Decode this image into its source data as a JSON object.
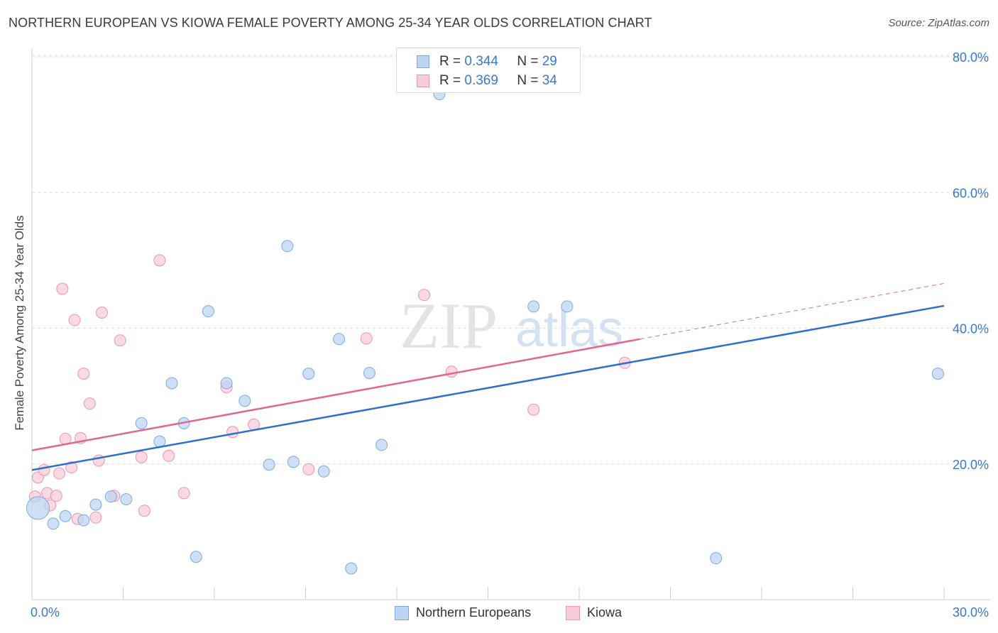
{
  "header": {
    "title": "NORTHERN EUROPEAN VS KIOWA FEMALE POVERTY AMONG 25-34 YEAR OLDS CORRELATION CHART",
    "source": "Source: ZipAtlas.com"
  },
  "watermark": {
    "zip": "ZIP",
    "atlas": "atlas"
  },
  "legend_top": {
    "rows": [
      {
        "r_label": "R =",
        "r_value": "0.344",
        "n_label": "N =",
        "n_value": "29"
      },
      {
        "r_label": "R =",
        "r_value": "0.369",
        "n_label": "N =",
        "n_value": "34"
      }
    ]
  },
  "legend_bottom": {
    "items": [
      "Northern Europeans",
      "Kiowa"
    ]
  },
  "colors": {
    "blue_fill": "#bcd5f3",
    "blue_stroke": "#7ea9df",
    "blue_line": "#2e6fcc",
    "pink_fill": "#f9ccda",
    "pink_stroke": "#ec94b1",
    "pink_line": "#e06790",
    "tick_text": "#3a78c9",
    "grid": "#dcdcdc"
  },
  "chart_data": {
    "type": "scatter",
    "title": "NORTHERN EUROPEAN VS KIOWA FEMALE POVERTY AMONG 25-34 YEAR OLDS CORRELATION CHART",
    "xlabel": "",
    "ylabel": "Female Poverty Among 25-34 Year Olds",
    "xlim": [
      0,
      30
    ],
    "ylim": [
      0,
      80
    ],
    "x_tick_labels": [
      "0.0%",
      "30.0%"
    ],
    "y_ticks": [
      20,
      40,
      60,
      80
    ],
    "y_tick_labels": [
      "20.0%",
      "40.0%",
      "60.0%",
      "80.0%"
    ],
    "grid": true,
    "legend_position": "bottom",
    "series": [
      {
        "name": "Northern Europeans",
        "r": 0.344,
        "n": 29,
        "trend": {
          "x": [
            0,
            30
          ],
          "y": [
            19.1,
            43.3
          ],
          "style": "solid"
        },
        "points": [
          {
            "x": 0.2,
            "y": 13.5,
            "size": "large"
          },
          {
            "x": 0.7,
            "y": 11.2
          },
          {
            "x": 1.1,
            "y": 12.3
          },
          {
            "x": 1.7,
            "y": 11.7
          },
          {
            "x": 2.1,
            "y": 14.0
          },
          {
            "x": 2.6,
            "y": 15.2
          },
          {
            "x": 3.1,
            "y": 14.8
          },
          {
            "x": 3.6,
            "y": 26.0
          },
          {
            "x": 4.2,
            "y": 23.3
          },
          {
            "x": 4.6,
            "y": 31.9
          },
          {
            "x": 5.0,
            "y": 26.0
          },
          {
            "x": 5.4,
            "y": 6.3
          },
          {
            "x": 5.8,
            "y": 42.5
          },
          {
            "x": 6.4,
            "y": 31.9
          },
          {
            "x": 7.0,
            "y": 29.3
          },
          {
            "x": 7.8,
            "y": 19.9
          },
          {
            "x": 8.4,
            "y": 52.1
          },
          {
            "x": 8.6,
            "y": 20.3
          },
          {
            "x": 9.1,
            "y": 33.3
          },
          {
            "x": 9.6,
            "y": 18.9
          },
          {
            "x": 10.1,
            "y": 38.4
          },
          {
            "x": 10.5,
            "y": 4.6
          },
          {
            "x": 11.1,
            "y": 33.4
          },
          {
            "x": 11.5,
            "y": 22.8
          },
          {
            "x": 13.4,
            "y": 74.5
          },
          {
            "x": 16.5,
            "y": 43.2
          },
          {
            "x": 17.6,
            "y": 43.2
          },
          {
            "x": 22.5,
            "y": 6.1
          },
          {
            "x": 29.8,
            "y": 33.3
          }
        ]
      },
      {
        "name": "Kiowa",
        "r": 0.369,
        "n": 34,
        "trend": {
          "x": [
            0,
            20
          ],
          "y": [
            22.0,
            38.4
          ],
          "extended": {
            "x": [
              20,
              30
            ],
            "y": [
              38.4,
              46.6
            ]
          },
          "style": "solid+dashed"
        },
        "points": [
          {
            "x": 0.1,
            "y": 15.2
          },
          {
            "x": 0.2,
            "y": 18.0
          },
          {
            "x": 0.4,
            "y": 19.1
          },
          {
            "x": 0.5,
            "y": 15.7
          },
          {
            "x": 0.6,
            "y": 13.9
          },
          {
            "x": 0.8,
            "y": 15.3
          },
          {
            "x": 0.9,
            "y": 18.6
          },
          {
            "x": 1.0,
            "y": 45.8
          },
          {
            "x": 1.1,
            "y": 23.7
          },
          {
            "x": 1.3,
            "y": 19.5
          },
          {
            "x": 1.4,
            "y": 41.2
          },
          {
            "x": 1.5,
            "y": 11.9
          },
          {
            "x": 1.6,
            "y": 23.8
          },
          {
            "x": 1.7,
            "y": 33.3
          },
          {
            "x": 1.9,
            "y": 28.9
          },
          {
            "x": 2.1,
            "y": 12.1
          },
          {
            "x": 2.2,
            "y": 20.5
          },
          {
            "x": 2.3,
            "y": 42.3
          },
          {
            "x": 2.7,
            "y": 15.3
          },
          {
            "x": 2.9,
            "y": 38.2
          },
          {
            "x": 3.6,
            "y": 21.0
          },
          {
            "x": 3.7,
            "y": 13.1
          },
          {
            "x": 4.2,
            "y": 50.0
          },
          {
            "x": 4.5,
            "y": 21.2
          },
          {
            "x": 5.0,
            "y": 15.7
          },
          {
            "x": 6.4,
            "y": 31.3
          },
          {
            "x": 6.6,
            "y": 24.7
          },
          {
            "x": 7.3,
            "y": 25.8
          },
          {
            "x": 9.1,
            "y": 19.2
          },
          {
            "x": 12.9,
            "y": 44.9
          },
          {
            "x": 11.0,
            "y": 38.5
          },
          {
            "x": 13.8,
            "y": 33.6
          },
          {
            "x": 16.5,
            "y": 28.0
          },
          {
            "x": 19.5,
            "y": 34.9
          }
        ]
      }
    ]
  }
}
